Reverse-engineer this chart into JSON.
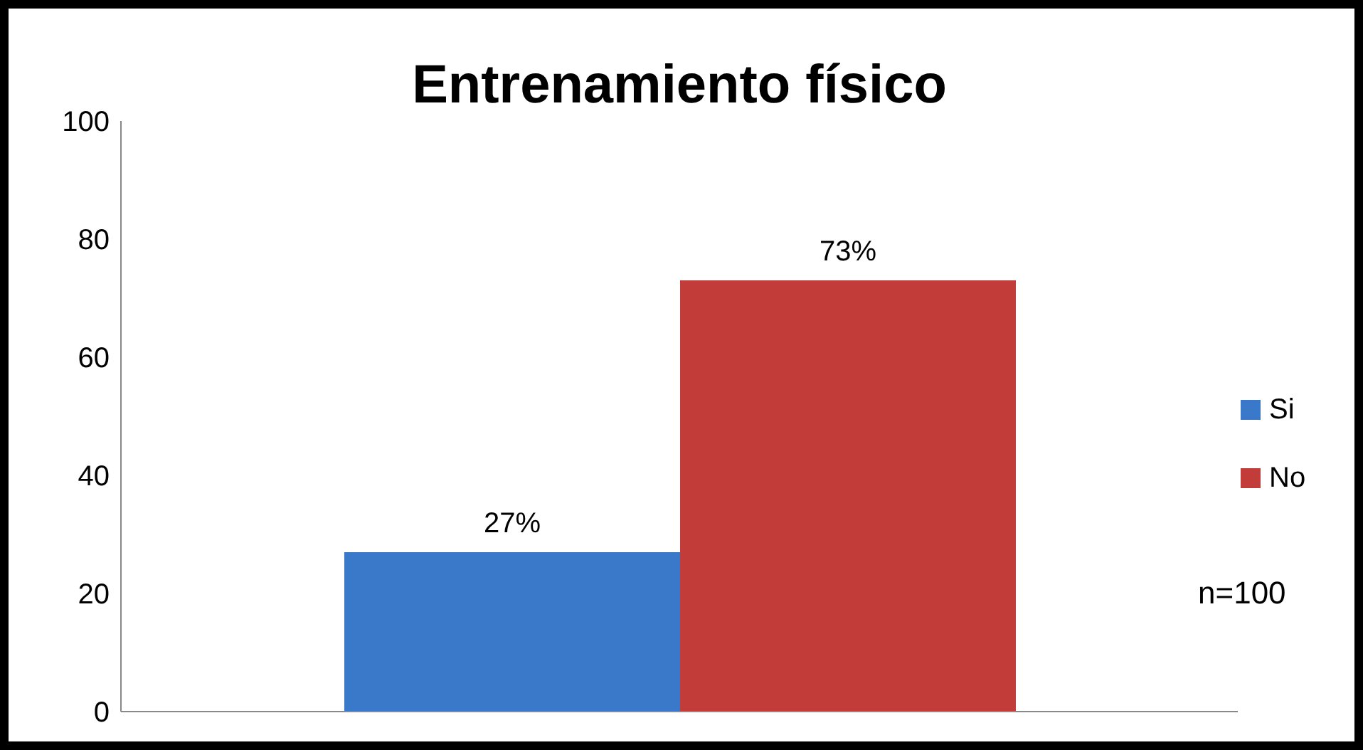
{
  "chart_data": {
    "type": "bar",
    "title": "Entrenamiento físico",
    "categories": [
      null
    ],
    "series": [
      {
        "name": "Si",
        "color": "#3a78c9",
        "values": [
          27
        ],
        "value_labels": [
          "27%"
        ]
      },
      {
        "name": "No",
        "color": "#c23c3a",
        "values": [
          73
        ],
        "value_labels": [
          "73%"
        ]
      }
    ],
    "ylim": [
      0,
      100
    ],
    "yticks": [
      0,
      20,
      40,
      60,
      80,
      100
    ],
    "legend": "right",
    "annotations": [
      "n=100"
    ]
  }
}
